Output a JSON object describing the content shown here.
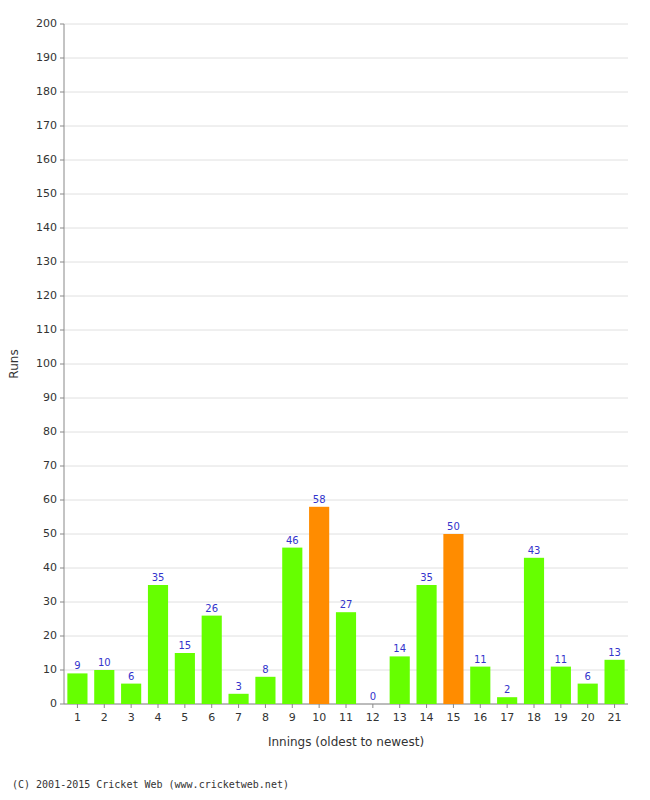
{
  "chart_data": {
    "type": "bar",
    "xlabel": "Innings (oldest to newest)",
    "ylabel": "Runs",
    "categories": [
      1,
      2,
      3,
      4,
      5,
      6,
      7,
      8,
      9,
      10,
      11,
      12,
      13,
      14,
      15,
      16,
      17,
      18,
      19,
      20,
      21
    ],
    "values": [
      9,
      10,
      6,
      35,
      15,
      26,
      3,
      8,
      46,
      58,
      27,
      0,
      14,
      35,
      50,
      11,
      2,
      43,
      11,
      6,
      13
    ],
    "colors": [
      "#66ff00",
      "#66ff00",
      "#66ff00",
      "#66ff00",
      "#66ff00",
      "#66ff00",
      "#66ff00",
      "#66ff00",
      "#66ff00",
      "#ff8c00",
      "#66ff00",
      "#66ff00",
      "#66ff00",
      "#66ff00",
      "#ff8c00",
      "#66ff00",
      "#66ff00",
      "#66ff00",
      "#66ff00",
      "#66ff00",
      "#66ff00"
    ],
    "ylim": [
      0,
      200
    ],
    "yticks": [
      0,
      10,
      20,
      30,
      40,
      50,
      60,
      70,
      80,
      90,
      100,
      110,
      120,
      130,
      140,
      150,
      160,
      170,
      180,
      190,
      200
    ],
    "grid": true,
    "data_labels": true,
    "annotations": [
      "(C) 2001-2015 Cricket Web (www.cricketweb.net)"
    ]
  }
}
